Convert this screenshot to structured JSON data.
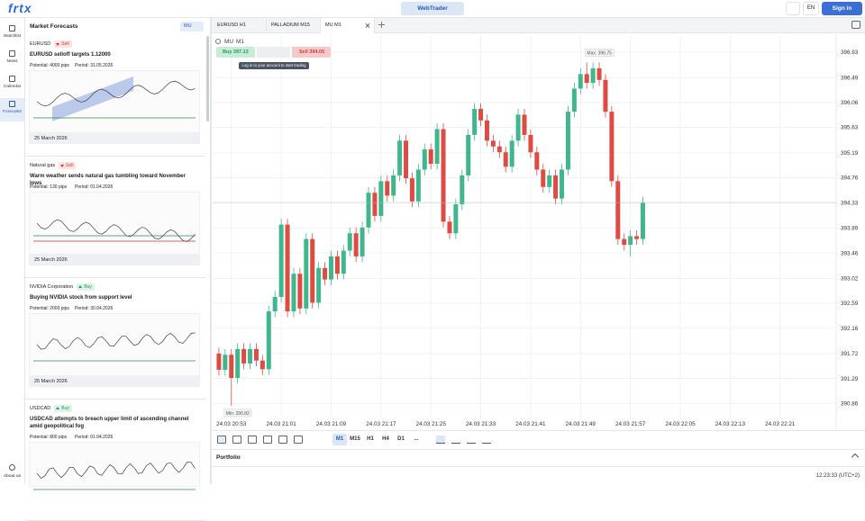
{
  "header": {
    "logo": "frtx",
    "webtrader": "WebTrader",
    "language": "EN",
    "sign_in": "Sign in"
  },
  "nav": {
    "items": [
      "Watchlist",
      "News",
      "Calendar",
      "Forecasts"
    ],
    "about": "About us"
  },
  "forecasts": {
    "title": "Market Forecasts",
    "badge": "MU",
    "cards": [
      {
        "instrument": "EURUSD",
        "direction": "Sell",
        "title": "EURUSD selloff targets 1.12000",
        "potential": "Potential: 4000 pips",
        "period": "Period: 31.05.2026",
        "date": "25 March 2026"
      },
      {
        "instrument": "Natural gas",
        "direction": "Sell",
        "title": "Warm weather sends natural gas tumbling toward November lows",
        "potential": "Potential: 130 pips",
        "period": "Period: 01.04.2026",
        "date": "25 March 2026"
      },
      {
        "instrument": "NVIDIA Corporation",
        "direction": "Buy",
        "title": "Buying NVIDIA stock from support level",
        "potential": "Potential: 2000 pips",
        "period": "Period: 30.04.2026",
        "date": "25 March 2026"
      },
      {
        "instrument": "USDCAD",
        "direction": "Buy",
        "title": "USDCAD attempts to breach upper limit of ascending channel amid geopolitical fog",
        "potential": "Potential: 800 pips",
        "period": "Period: 01.04.2026"
      }
    ]
  },
  "tabs": [
    "EURUSD H1",
    "PALLADIUM M15",
    "MU M1"
  ],
  "chart_header": {
    "symbol": "MU",
    "timeframe": "M1",
    "buy": "Buy 397.13",
    "sell": "Sell 394.05",
    "login_hint": "Log in to your account to start trading"
  },
  "chart_data": {
    "type": "candlestick",
    "up_color": "#3fb68b",
    "down_color": "#de4b43",
    "grid": true,
    "annotations": {
      "max": "Max: 396.75",
      "min": "Min: 390.82"
    },
    "xlim": [
      "24.03 20:50",
      "24.03 22:30"
    ],
    "xticks": [
      "24.03 20:53",
      "24.03 21:01",
      "24.03 21:09",
      "24.03 21:17",
      "24.03 21:25",
      "24.03 21:33",
      "24.03 21:41",
      "24.03 21:49",
      "24.03 21:57",
      "24.03 22:05",
      "24.03 22:13",
      "24.03 22:21"
    ],
    "ylim": [
      390.6,
      397.24
    ],
    "yticks": [
      390.86,
      391.29,
      391.72,
      392.16,
      392.59,
      393.02,
      393.46,
      393.89,
      394.33,
      394.76,
      395.19,
      395.63,
      396.06,
      396.49,
      396.93
    ],
    "x": [
      "24.03 20:51",
      "24.03 20:52",
      "24.03 20:53",
      "24.03 20:54",
      "24.03 20:55",
      "24.03 20:56",
      "24.03 20:57",
      "24.03 20:58",
      "24.03 20:59",
      "24.03 21:00",
      "24.03 21:01",
      "24.03 21:02",
      "24.03 21:03",
      "24.03 21:04",
      "24.03 21:05",
      "24.03 21:06",
      "24.03 21:07",
      "24.03 21:08",
      "24.03 21:09",
      "24.03 21:10",
      "24.03 21:11",
      "24.03 21:12",
      "24.03 21:13",
      "24.03 21:14",
      "24.03 21:15",
      "24.03 21:16",
      "24.03 21:17",
      "24.03 21:18",
      "24.03 21:19",
      "24.03 21:20",
      "24.03 21:21",
      "24.03 21:22",
      "24.03 21:23",
      "24.03 21:24",
      "24.03 21:25",
      "24.03 21:26",
      "24.03 21:27",
      "24.03 21:28",
      "24.03 21:29",
      "24.03 21:30",
      "24.03 21:31",
      "24.03 21:32",
      "24.03 21:33",
      "24.03 21:34",
      "24.03 21:35",
      "24.03 21:36",
      "24.03 21:37",
      "24.03 21:38",
      "24.03 21:39",
      "24.03 21:40",
      "24.03 21:41",
      "24.03 21:42",
      "24.03 21:43",
      "24.03 21:44",
      "24.03 21:45",
      "24.03 21:46",
      "24.03 21:47",
      "24.03 21:48",
      "24.03 21:49",
      "24.03 21:50",
      "24.03 21:51",
      "24.03 21:52",
      "24.03 21:53",
      "24.03 21:54",
      "24.03 21:55",
      "24.03 21:56",
      "24.03 21:57",
      "24.03 21:58",
      "24.03 21:59"
    ],
    "open": [
      391.72,
      391.44,
      391.7,
      391.3,
      391.8,
      391.55,
      391.8,
      391.6,
      391.45,
      392.45,
      392.7,
      393.95,
      392.45,
      393.1,
      392.5,
      393.7,
      392.6,
      393.2,
      393.0,
      393.4,
      393.1,
      393.5,
      393.8,
      393.4,
      393.9,
      394.5,
      394.1,
      394.7,
      394.45,
      394.8,
      395.4,
      394.75,
      394.35,
      394.9,
      395.25,
      395.0,
      395.6,
      394.0,
      393.8,
      394.3,
      394.8,
      395.5,
      395.95,
      395.75,
      395.4,
      395.3,
      395.2,
      394.95,
      395.4,
      395.85,
      395.5,
      395.2,
      394.9,
      394.6,
      394.8,
      394.4,
      394.9,
      395.9,
      396.3,
      396.55,
      396.4,
      396.65,
      396.45,
      395.9,
      394.7,
      393.7,
      393.6,
      393.75,
      393.7
    ],
    "high": [
      391.82,
      391.8,
      391.8,
      391.9,
      391.9,
      391.9,
      391.9,
      391.7,
      392.55,
      392.8,
      394.05,
      394.05,
      393.2,
      393.2,
      393.8,
      393.8,
      393.3,
      393.3,
      393.5,
      393.5,
      393.6,
      393.9,
      393.9,
      394.0,
      394.6,
      394.6,
      394.8,
      394.8,
      394.9,
      395.5,
      395.5,
      394.85,
      395.0,
      395.35,
      395.35,
      395.7,
      395.7,
      394.1,
      394.4,
      394.9,
      395.6,
      396.05,
      396.05,
      395.85,
      395.5,
      395.4,
      395.3,
      395.5,
      395.95,
      395.95,
      395.6,
      395.3,
      395.0,
      394.9,
      394.9,
      395.0,
      396.0,
      396.4,
      396.65,
      396.75,
      396.75,
      396.75,
      396.55,
      396.0,
      394.8,
      393.8,
      393.85,
      393.85,
      394.43
    ],
    "low": [
      391.34,
      391.34,
      390.82,
      391.2,
      391.45,
      391.45,
      391.5,
      391.35,
      391.35,
      392.35,
      392.6,
      392.35,
      392.35,
      392.4,
      392.4,
      392.5,
      392.5,
      392.9,
      392.9,
      393.0,
      393.0,
      393.4,
      393.3,
      393.3,
      393.8,
      394.0,
      394.0,
      394.35,
      394.35,
      394.7,
      394.65,
      394.25,
      394.25,
      394.8,
      394.9,
      394.9,
      393.9,
      393.7,
      393.7,
      394.2,
      394.7,
      395.4,
      395.65,
      395.3,
      395.2,
      395.1,
      394.85,
      394.85,
      395.3,
      395.4,
      395.1,
      394.8,
      394.5,
      394.5,
      394.3,
      394.3,
      394.8,
      395.8,
      396.2,
      396.3,
      396.3,
      396.35,
      395.8,
      394.6,
      393.6,
      393.5,
      393.4,
      393.6,
      393.6
    ],
    "close": [
      391.44,
      391.7,
      391.3,
      391.8,
      391.55,
      391.8,
      391.6,
      391.45,
      392.45,
      392.7,
      393.95,
      392.45,
      393.1,
      392.5,
      393.7,
      392.6,
      393.2,
      393.0,
      393.4,
      393.1,
      393.5,
      393.8,
      393.4,
      393.9,
      394.5,
      394.1,
      394.7,
      394.45,
      394.8,
      395.4,
      394.75,
      394.35,
      394.9,
      395.25,
      395.0,
      395.6,
      394.0,
      393.8,
      394.3,
      394.8,
      395.5,
      395.95,
      395.75,
      395.4,
      395.3,
      395.2,
      394.95,
      395.4,
      395.85,
      395.5,
      395.2,
      394.9,
      394.6,
      394.8,
      394.4,
      394.9,
      395.9,
      396.3,
      396.55,
      396.4,
      396.65,
      396.45,
      395.9,
      394.7,
      393.7,
      393.6,
      393.75,
      393.7,
      394.33
    ]
  },
  "toolbar": {
    "timeframes": [
      "M1",
      "M15",
      "H1",
      "H4",
      "D1",
      "..."
    ]
  },
  "portfolio": "Portfolio",
  "status": {
    "time": "12:23:33 (UTC+2)"
  }
}
